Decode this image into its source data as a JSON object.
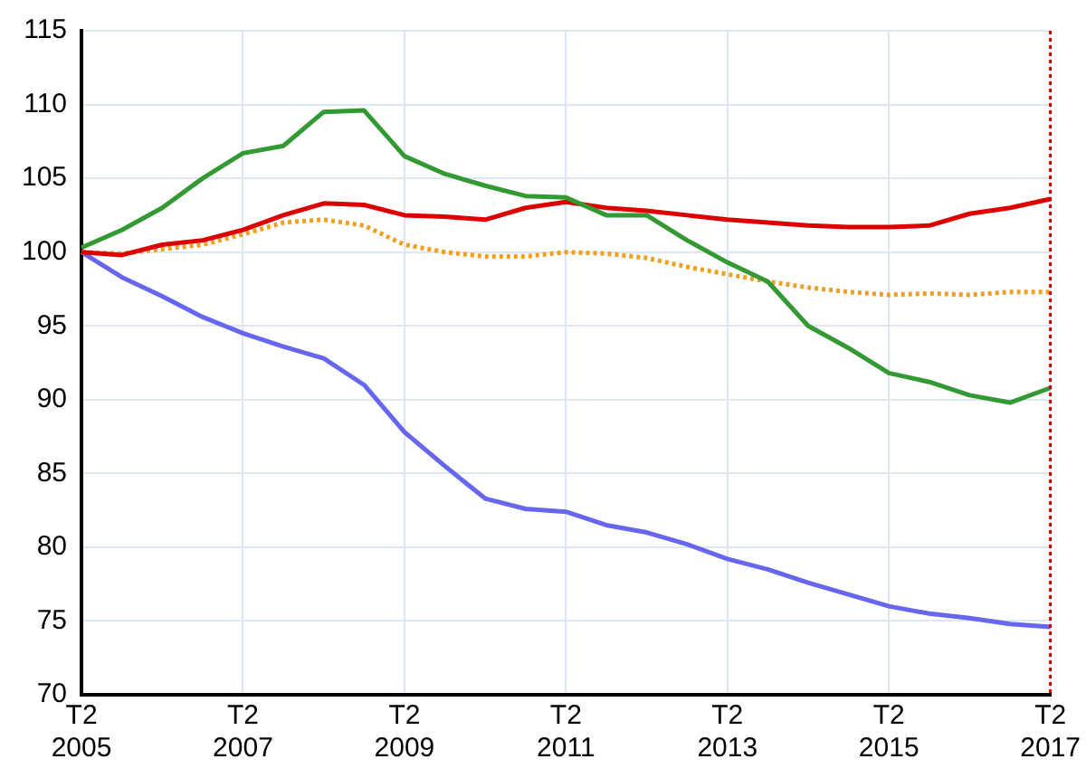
{
  "chart_data": {
    "type": "line",
    "categories": [
      "T2\n2005",
      null,
      null,
      null,
      "T2\n2007",
      null,
      null,
      null,
      "T2\n2009",
      null,
      null,
      null,
      "T2\n2011",
      null,
      null,
      null,
      "T2\n2013",
      null,
      null,
      null,
      "T2\n2015",
      null,
      null,
      null,
      "T2\n2017"
    ],
    "series": [
      {
        "color": "#339933",
        "values": [
          100.3,
          101.5,
          103,
          105,
          106.7,
          107.2,
          109.5,
          109.6,
          106.5,
          105.3,
          104.5,
          103.8,
          103.7,
          102.5,
          102.5,
          100.8,
          99.3,
          98,
          95,
          93.5,
          91.8,
          91.2,
          90.3,
          89.8,
          90.8
        ]
      },
      {
        "color": "#dd0000",
        "values": [
          100,
          99.8,
          100.5,
          100.8,
          101.5,
          102.5,
          103.3,
          103.2,
          102.5,
          102.4,
          102.2,
          103,
          103.4,
          103,
          102.8,
          102.5,
          102.2,
          102,
          101.8,
          101.7,
          101.7,
          101.8,
          102.6,
          103,
          103.6
        ]
      },
      {
        "color": "#f0a020",
        "line_style": "dotted",
        "values": [
          100,
          99.9,
          100.2,
          100.5,
          101.2,
          102,
          102.2,
          101.8,
          100.5,
          100,
          99.7,
          99.7,
          100,
          99.9,
          99.6,
          99,
          98.5,
          98,
          97.6,
          97.3,
          97.1,
          97.2,
          97.1,
          97.3,
          97.3
        ]
      },
      {
        "color": "#6666ee",
        "values": [
          100,
          98.3,
          97,
          95.6,
          94.5,
          93.6,
          92.8,
          91,
          87.8,
          85.5,
          83.3,
          82.6,
          82.4,
          81.5,
          81,
          80.2,
          79.2,
          78.5,
          77.6,
          76.8,
          76,
          75.5,
          75.2,
          74.8,
          74.6
        ]
      }
    ],
    "ylim": [
      70,
      115
    ],
    "yticks": [
      70,
      75,
      80,
      85,
      90,
      95,
      100,
      105,
      110,
      115
    ],
    "grid": true,
    "legend": false,
    "marker": "none",
    "ref_lines": [
      {
        "axis": "x",
        "value": "T2\n2017",
        "color": "#cc0000",
        "line_style": "dotted"
      }
    ]
  }
}
